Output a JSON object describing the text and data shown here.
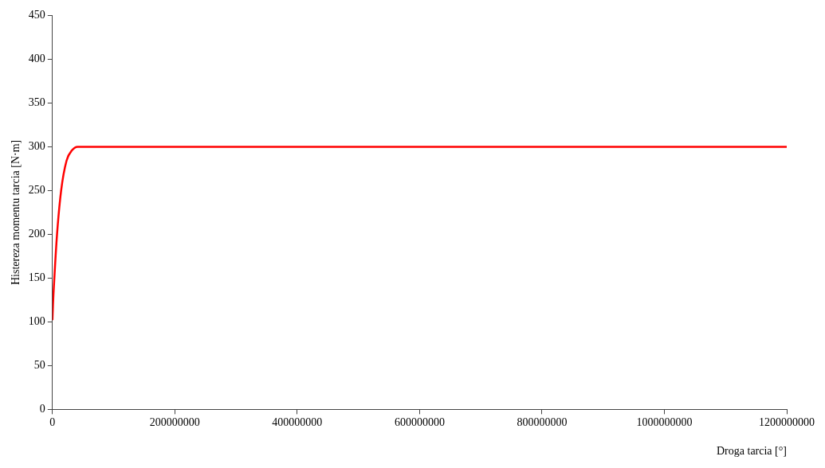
{
  "chart_data": {
    "type": "line",
    "xlabel": "Droga tarcia [°]",
    "ylabel": "Histereza momentu tarcia [N·m]",
    "x": [
      0,
      900000,
      3100000,
      7500000,
      14200000,
      23000000,
      32000000,
      41000000,
      1200000000
    ],
    "series": [
      {
        "color": "#ff0000",
        "values": [
          102,
          120,
          150,
          200,
          250,
          284,
          296,
          300,
          300
        ]
      }
    ],
    "xlim": [
      0,
      1200000000
    ],
    "xticks": [
      0,
      200000000,
      400000000,
      600000000,
      800000000,
      1000000000,
      1200000000
    ],
    "ylim": [
      0,
      450
    ],
    "yticks": [
      0,
      50,
      100,
      150,
      200,
      250,
      300,
      350,
      400,
      450
    ],
    "grid": false,
    "legend": false,
    "marker": "none",
    "line_style": "solid"
  }
}
